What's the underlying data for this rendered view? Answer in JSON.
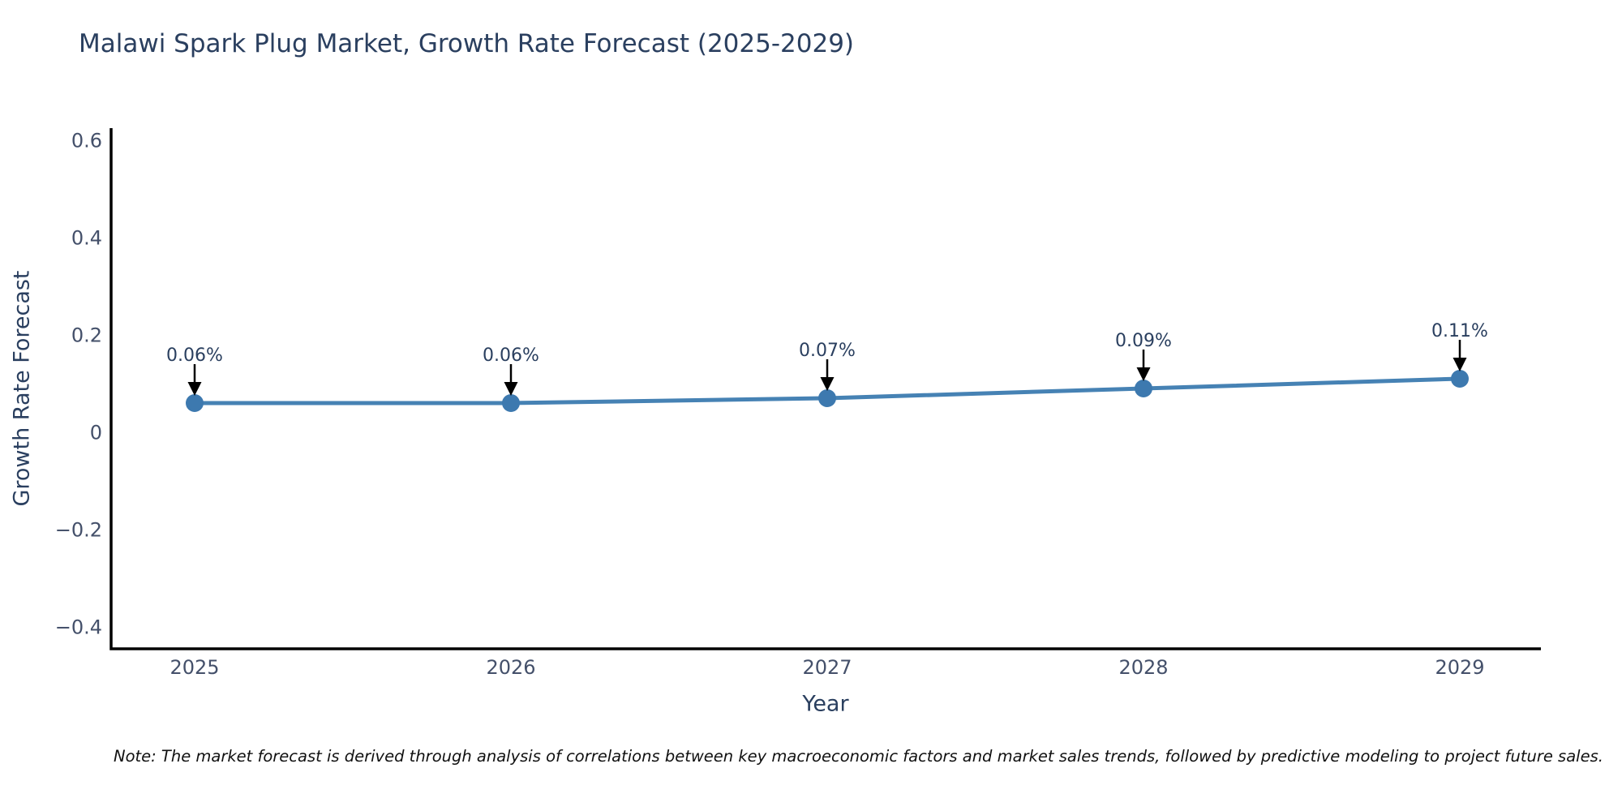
{
  "title": "Malawi Spark Plug Market, Growth Rate Forecast (2025-2029)",
  "note": "Note: The market forecast is derived through analysis of correlations between key macroeconomic factors and market sales trends, followed by predictive modeling to project future sales.",
  "colors": {
    "background": "#ffffff",
    "title_text": "#2a3f5f",
    "axis_title_text": "#2a3f5f",
    "tick_text": "#44506a",
    "axis_line": "#000000",
    "line": "#4682b4",
    "marker": "#3d79af",
    "annotation_text": "#2a3f5f",
    "annotation_arrow": "#000000",
    "note_text": "#111111"
  },
  "chart_data": {
    "type": "line",
    "title": "Malawi Spark Plug Market, Growth Rate Forecast (2025-2029)",
    "xlabel": "Year",
    "ylabel": "Growth Rate Forecast",
    "x": [
      2025,
      2026,
      2027,
      2028,
      2029
    ],
    "x_tick_labels": [
      "2025",
      "2026",
      "2027",
      "2028",
      "2029"
    ],
    "series": [
      {
        "name": "Growth Rate Forecast",
        "values": [
          0.06,
          0.06,
          0.07,
          0.09,
          0.11
        ]
      }
    ],
    "point_labels": [
      "0.06%",
      "0.06%",
      "0.07%",
      "0.09%",
      "0.11%"
    ],
    "y_ticks": [
      0.6,
      0.4,
      0.2,
      0,
      -0.2,
      -0.4
    ],
    "y_tick_labels": [
      "0.6",
      "0.4",
      "0.2",
      "0",
      "−0.2",
      "−0.4"
    ],
    "ylim": [
      -0.445,
      0.625
    ],
    "grid": false,
    "legend": "none",
    "annotations": "value labels with downward arrows above each point"
  }
}
